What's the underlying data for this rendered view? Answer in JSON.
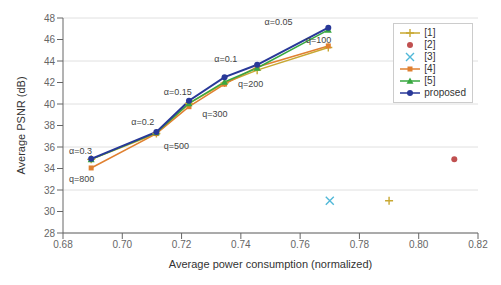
{
  "chart_data": {
    "type": "line",
    "xlabel": "Average power consumption (normalized)",
    "ylabel": "Average PSNR (dB)",
    "xlim": [
      0.68,
      0.82
    ],
    "ylim": [
      28,
      48
    ],
    "xticks": [
      0.68,
      {
        "value": 0.7,
        "label": "0.70"
      },
      0.72,
      0.74,
      0.76,
      0.78,
      {
        "value": 0.8,
        "label": "0.80"
      },
      0.82
    ],
    "yticks": [
      28,
      30,
      32,
      34,
      36,
      38,
      40,
      42,
      44,
      46,
      48
    ],
    "grid": true,
    "legend": "upper right",
    "series": [
      {
        "name": "[1]",
        "type": "line",
        "color": "#c8a832",
        "marker": "plus",
        "x": [
          0.6895,
          0.7115,
          0.7225,
          0.7345,
          0.7455,
          0.7695
        ],
        "values": [
          34.85,
          37.25,
          40.05,
          41.95,
          43.15,
          45.25
        ]
      },
      {
        "name": "[2]",
        "type": "scatter",
        "color": "#c05050",
        "marker": "circle",
        "x": [
          0.812
        ],
        "values": [
          34.85
        ]
      },
      {
        "name": "[3]",
        "type": "scatter",
        "color": "#50b8d8",
        "marker": "x",
        "x": [
          0.77
        ],
        "values": [
          31.0
        ]
      },
      {
        "name": "[4]",
        "type": "line",
        "color": "#e08030",
        "marker": "square",
        "x": [
          0.6895,
          0.7115,
          0.7225,
          0.7345,
          0.7455,
          0.7695
        ],
        "values": [
          34.05,
          37.25,
          39.75,
          41.85,
          43.45,
          45.4
        ]
      },
      {
        "name": "[5]",
        "type": "line",
        "color": "#38a840",
        "marker": "triangle",
        "x": [
          0.6895,
          0.7115,
          0.7225,
          0.7345,
          0.7455,
          0.7695
        ],
        "values": [
          34.85,
          37.35,
          40.05,
          42.05,
          43.35,
          46.9
        ]
      },
      {
        "name": "proposed",
        "type": "line",
        "color": "#283898",
        "marker": "circle",
        "x": [
          0.6895,
          0.7115,
          0.7225,
          0.7345,
          0.7455,
          0.7695
        ],
        "values": [
          34.9,
          37.4,
          40.3,
          42.5,
          43.65,
          47.1
        ]
      }
    ],
    "annotations": [
      {
        "text": "α=0.3",
        "x": 0.682,
        "y": 35.15
      },
      {
        "text": "α=0.2",
        "x": 0.703,
        "y": 37.85
      },
      {
        "text": "α=0.15",
        "x": 0.714,
        "y": 40.65
      },
      {
        "text": "α=0.1",
        "x": 0.731,
        "y": 43.7
      },
      {
        "text": "α=0.05",
        "x": 0.748,
        "y": 47.15
      },
      {
        "text": "q=800",
        "x": 0.682,
        "y": 32.6
      },
      {
        "text": "q=500",
        "x": 0.714,
        "y": 35.65
      },
      {
        "text": "q=300",
        "x": 0.727,
        "y": 38.65
      },
      {
        "text": "q=200",
        "x": 0.739,
        "y": 41.35
      },
      {
        "text": "q=100",
        "x": 0.762,
        "y": 45.5
      }
    ],
    "extra_points": [
      {
        "x": 0.79,
        "y": 31.0,
        "color": "#c8a832",
        "marker": "plus"
      }
    ]
  }
}
